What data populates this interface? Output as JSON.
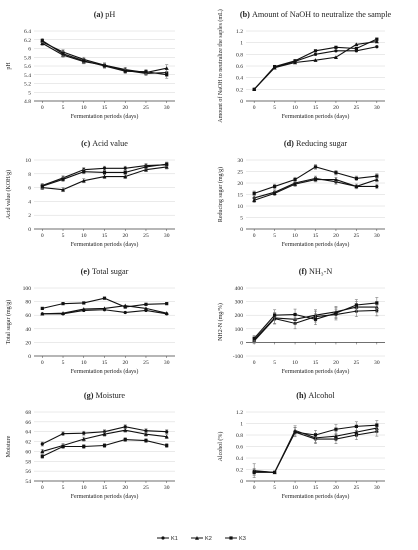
{
  "legend": {
    "items": [
      {
        "name": "K1",
        "marker": "circle"
      },
      {
        "name": "K2",
        "marker": "triangle"
      },
      {
        "name": "K3",
        "marker": "square"
      }
    ]
  },
  "chart_data": [
    {
      "type": "line",
      "letter": "(a)",
      "title": "pH",
      "xlabel": "Fermentation periods (days)",
      "ylabel": "pH",
      "x": [
        0,
        5,
        10,
        15,
        20,
        25,
        30
      ],
      "xlim": [
        -2,
        32
      ],
      "ylim": [
        4.8,
        6.4
      ],
      "yticks": [
        "4.8",
        "5",
        "5.2",
        "5.4",
        "5.6",
        "5.8",
        "6",
        "6.2",
        "6.4"
      ],
      "ytick_values": [
        4.8,
        5.0,
        5.2,
        5.4,
        5.6,
        5.8,
        6.0,
        6.2,
        6.4
      ],
      "series": [
        {
          "name": "K1",
          "values": [
            6.15,
            5.92,
            5.75,
            5.62,
            5.5,
            5.43,
            5.45
          ],
          "errors": [
            0.05,
            0.05,
            0.05,
            0.05,
            0.05,
            0.05,
            0.08
          ]
        },
        {
          "name": "K2",
          "values": [
            6.12,
            5.85,
            5.7,
            5.62,
            5.52,
            5.45,
            5.55
          ],
          "errors": [
            0.05,
            0.05,
            0.05,
            0.05,
            0.05,
            0.05,
            0.08
          ]
        },
        {
          "name": "K3",
          "values": [
            6.18,
            5.88,
            5.72,
            5.6,
            5.48,
            5.47,
            5.4
          ],
          "errors": [
            0.05,
            0.05,
            0.05,
            0.05,
            0.05,
            0.05,
            0.08
          ]
        }
      ]
    },
    {
      "type": "line",
      "letter": "(b)",
      "title": "Amount of NaOH to neutralize the sample",
      "xlabel": "Fermentation periods (days)",
      "ylabel": "Amount of NaOH to neutralize the saples (mL)",
      "x": [
        0,
        5,
        10,
        15,
        20,
        25,
        30
      ],
      "xlim": [
        -2,
        32
      ],
      "ylim": [
        0,
        1.2
      ],
      "yticks": [
        "0",
        "0.2",
        "0.4",
        "0.6",
        "0.8",
        "1",
        "1.2"
      ],
      "ytick_values": [
        0,
        0.2,
        0.4,
        0.6,
        0.8,
        1.0,
        1.2
      ],
      "series": [
        {
          "name": "K1",
          "values": [
            0.2,
            0.58,
            0.68,
            0.8,
            0.86,
            0.86,
            0.93
          ],
          "errors": [
            0.01,
            0.01,
            0.01,
            0.01,
            0.01,
            0.01,
            0.01
          ]
        },
        {
          "name": "K2",
          "values": [
            0.2,
            0.57,
            0.66,
            0.7,
            0.75,
            0.97,
            1.02
          ],
          "errors": [
            0.01,
            0.01,
            0.01,
            0.01,
            0.01,
            0.01,
            0.01
          ]
        },
        {
          "name": "K3",
          "values": [
            0.2,
            0.59,
            0.69,
            0.86,
            0.92,
            0.9,
            1.06
          ],
          "errors": [
            0.01,
            0.01,
            0.01,
            0.01,
            0.01,
            0.01,
            0.01
          ]
        }
      ]
    },
    {
      "type": "line",
      "letter": "(c)",
      "title": "Acid value",
      "xlabel": "Fermentation periods (days)",
      "ylabel": "Acid value (KOH/g)",
      "x": [
        0,
        5,
        10,
        15,
        20,
        25,
        30
      ],
      "xlim": [
        -2,
        32
      ],
      "ylim": [
        0,
        10
      ],
      "yticks": [
        "0",
        "2",
        "4",
        "6",
        "8",
        "10"
      ],
      "ytick_values": [
        0,
        2,
        4,
        6,
        8,
        10
      ],
      "series": [
        {
          "name": "K1",
          "values": [
            6.3,
            7.4,
            8.6,
            8.8,
            8.8,
            9.2,
            9.3
          ],
          "errors": [
            0.3,
            0.3,
            0.3,
            0.3,
            0.3,
            0.3,
            0.3
          ]
        },
        {
          "name": "K2",
          "values": [
            6.0,
            5.7,
            7.0,
            7.6,
            7.6,
            8.6,
            9.0
          ],
          "errors": [
            0.3,
            0.3,
            0.3,
            0.3,
            0.3,
            0.3,
            0.3
          ]
        },
        {
          "name": "K3",
          "values": [
            6.2,
            7.2,
            8.3,
            8.2,
            8.2,
            9.0,
            9.4
          ],
          "errors": [
            0.3,
            0.3,
            0.3,
            0.3,
            0.3,
            0.3,
            0.3
          ]
        }
      ]
    },
    {
      "type": "line",
      "letter": "(d)",
      "title": "Reducing sugar",
      "xlabel": "Fermentation periods (days)",
      "ylabel": "Reducing sugar (mg/g)",
      "x": [
        0,
        5,
        10,
        15,
        20,
        25,
        30
      ],
      "xlim": [
        -2,
        32
      ],
      "ylim": [
        0,
        30
      ],
      "yticks": [
        "0",
        "5",
        "10",
        "15",
        "20",
        "25",
        "30"
      ],
      "ytick_values": [
        0,
        5,
        10,
        15,
        20,
        25,
        30
      ],
      "series": [
        {
          "name": "K1",
          "values": [
            13.5,
            16.0,
            20.0,
            22.0,
            20.5,
            18.5,
            18.5
          ],
          "errors": [
            1.0,
            1.0,
            1.0,
            1.0,
            1.0,
            1.0,
            1.0
          ]
        },
        {
          "name": "K2",
          "values": [
            12.5,
            15.5,
            19.5,
            21.5,
            21.5,
            18.5,
            21.5
          ],
          "errors": [
            1.0,
            1.0,
            1.0,
            1.0,
            1.0,
            1.0,
            1.0
          ]
        },
        {
          "name": "K3",
          "values": [
            15.5,
            18.5,
            21.5,
            27.0,
            24.5,
            22.0,
            23.0
          ],
          "errors": [
            1.0,
            1.0,
            1.0,
            1.0,
            1.0,
            1.0,
            1.0
          ]
        }
      ]
    },
    {
      "type": "line",
      "letter": "(e)",
      "title": "Total sugar",
      "xlabel": "Fermentation periods (days)",
      "ylabel": "Total sugar (mg/g)",
      "x": [
        0,
        5,
        10,
        15,
        20,
        25,
        30
      ],
      "xlim": [
        -2,
        32
      ],
      "ylim": [
        0,
        100
      ],
      "yticks": [
        "0",
        "20",
        "40",
        "60",
        "80",
        "100"
      ],
      "ytick_values": [
        0,
        20,
        40,
        60,
        80,
        100
      ],
      "series": [
        {
          "name": "K1",
          "values": [
            62,
            62,
            67,
            68,
            64,
            67,
            62
          ],
          "errors": [
            0,
            0,
            0,
            0,
            0,
            0,
            0
          ]
        },
        {
          "name": "K2",
          "values": [
            62,
            63,
            69,
            70,
            74,
            70,
            63
          ],
          "errors": [
            0,
            0,
            0,
            0,
            0,
            0,
            0
          ]
        },
        {
          "name": "K3",
          "values": [
            70,
            77,
            78,
            85,
            72,
            76,
            77
          ],
          "errors": [
            0,
            0,
            0,
            0,
            0,
            0,
            0
          ]
        }
      ]
    },
    {
      "type": "line",
      "letter": "(f)",
      "title": "NH₃-N",
      "xlabel": "Fermentation periods (days)",
      "ylabel": "NH2-N (mg/%)",
      "x": [
        0,
        5,
        10,
        15,
        20,
        25,
        30
      ],
      "xlim": [
        -2,
        32
      ],
      "ylim": [
        -100,
        400
      ],
      "yticks": [
        "-100",
        "0",
        "100",
        "200",
        "300",
        "400"
      ],
      "ytick_values": [
        -100,
        0,
        100,
        200,
        300,
        400
      ],
      "series": [
        {
          "name": "K1",
          "values": [
            10,
            175,
            140,
            190,
            205,
            230,
            235
          ],
          "errors": [
            20,
            40,
            40,
            40,
            40,
            40,
            40
          ]
        },
        {
          "name": "K2",
          "values": [
            20,
            180,
            170,
            200,
            225,
            260,
            260
          ],
          "errors": [
            20,
            40,
            40,
            40,
            40,
            40,
            40
          ]
        },
        {
          "name": "K3",
          "values": [
            30,
            200,
            205,
            170,
            215,
            275,
            290
          ],
          "errors": [
            20,
            40,
            40,
            40,
            40,
            40,
            40
          ]
        }
      ]
    },
    {
      "type": "line",
      "letter": "(g)",
      "title": "Moisture",
      "xlabel": "Fermentation periods (days)",
      "ylabel": "Moisture",
      "x": [
        0,
        5,
        10,
        15,
        20,
        25,
        30
      ],
      "xlim": [
        -2,
        32
      ],
      "ylim": [
        54,
        68
      ],
      "yticks": [
        "54",
        "56",
        "58",
        "60",
        "62",
        "64",
        "66",
        "68"
      ],
      "ytick_values": [
        54,
        56,
        58,
        60,
        62,
        64,
        66,
        68
      ],
      "series": [
        {
          "name": "K1",
          "values": [
            61.5,
            63.6,
            63.7,
            64.0,
            65.0,
            64.2,
            64.0
          ],
          "errors": [
            0.4,
            0.4,
            0.4,
            0.4,
            0.4,
            0.4,
            0.4
          ]
        },
        {
          "name": "K2",
          "values": [
            60.0,
            61.2,
            62.5,
            63.5,
            64.3,
            63.5,
            63.0
          ],
          "errors": [
            0.4,
            0.4,
            0.4,
            0.4,
            0.4,
            0.4,
            0.4
          ]
        },
        {
          "name": "K3",
          "values": [
            59.0,
            61.0,
            61.0,
            61.2,
            62.4,
            62.2,
            61.2
          ],
          "errors": [
            0.4,
            0.4,
            0.4,
            0.4,
            0.4,
            0.4,
            0.4
          ]
        }
      ]
    },
    {
      "type": "line",
      "letter": "(h)",
      "title": "Alcohol",
      "xlabel": "Fermentation periods (days)",
      "ylabel": "Alcohol (%)",
      "x": [
        0,
        5,
        10,
        15,
        20,
        25,
        30
      ],
      "xlim": [
        -2,
        32
      ],
      "ylim": [
        0,
        1.2
      ],
      "yticks": [
        "0",
        "0.2",
        "0.4",
        "0.6",
        "0.8",
        "1",
        "1.2"
      ],
      "ytick_values": [
        0,
        0.2,
        0.4,
        0.6,
        0.8,
        1.0,
        1.2
      ],
      "series": [
        {
          "name": "K1",
          "values": [
            0.17,
            0.15,
            0.85,
            0.73,
            0.73,
            0.8,
            0.86
          ],
          "errors": [
            0.05,
            0.02,
            0.08,
            0.08,
            0.08,
            0.08,
            0.08
          ]
        },
        {
          "name": "K2",
          "values": [
            0.18,
            0.15,
            0.88,
            0.75,
            0.78,
            0.85,
            0.92
          ],
          "errors": [
            0.12,
            0.02,
            0.08,
            0.08,
            0.08,
            0.08,
            0.08
          ]
        },
        {
          "name": "K3",
          "values": [
            0.15,
            0.15,
            0.85,
            0.8,
            0.9,
            0.95,
            0.97
          ],
          "errors": [
            0.05,
            0.02,
            0.08,
            0.08,
            0.08,
            0.08,
            0.08
          ]
        }
      ]
    }
  ]
}
